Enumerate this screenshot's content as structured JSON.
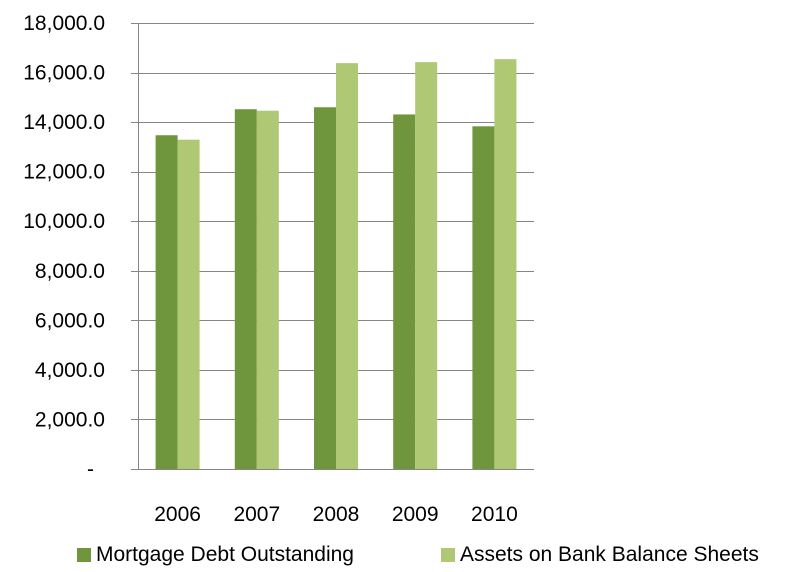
{
  "chart_data": {
    "type": "bar",
    "title": "",
    "xlabel": "",
    "ylabel": "",
    "categories": [
      "2006",
      "2007",
      "2008",
      "2009",
      "2010"
    ],
    "series": [
      {
        "name": "Mortgage Debt Outstanding",
        "color": "#6f963c",
        "values": [
          13470,
          14520,
          14600,
          14310,
          13830
        ]
      },
      {
        "name": "Assets on Bank Balance Sheets",
        "color": "#aec874",
        "values": [
          13290,
          14460,
          16380,
          16420,
          16540
        ]
      }
    ],
    "ylim": [
      0,
      18000
    ],
    "y_ticks": [
      {
        "value": 0,
        "label": "-"
      },
      {
        "value": 2000,
        "label": "2,000.0"
      },
      {
        "value": 4000,
        "label": "4,000.0"
      },
      {
        "value": 6000,
        "label": "6,000.0"
      },
      {
        "value": 8000,
        "label": "8,000.0"
      },
      {
        "value": 10000,
        "label": "10,000.0"
      },
      {
        "value": 12000,
        "label": "12,000.0"
      },
      {
        "value": 14000,
        "label": "14,000.0"
      },
      {
        "value": 16000,
        "label": "16,000.0"
      },
      {
        "value": 18000,
        "label": "18,000.0"
      }
    ],
    "grid": true,
    "legend_position": "bottom",
    "colors": {
      "gridline": "#868686",
      "axis": "#868686"
    }
  }
}
